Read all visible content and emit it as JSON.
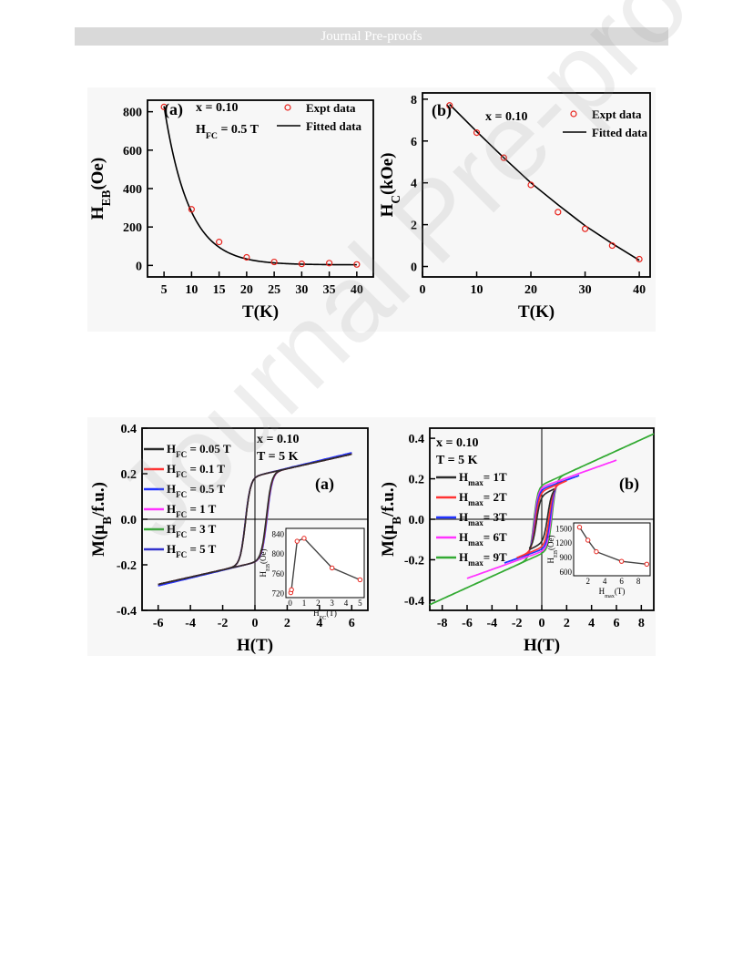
{
  "header": {
    "banner": "Journal Pre-proofs"
  },
  "watermark": "Journal Pre-proofs",
  "chart_data": [
    {
      "id": "top-a",
      "type": "scatter",
      "panel_label": "(a)",
      "annotations": [
        "x = 0.10",
        "H_FC = 0.5 T"
      ],
      "xlabel": "T(K)",
      "ylabel": "H_EB(Oe)",
      "xlim": [
        2,
        43
      ],
      "ylim": [
        -60,
        860
      ],
      "xticks": [
        5,
        10,
        15,
        20,
        25,
        30,
        35,
        40
      ],
      "yticks": [
        0,
        200,
        400,
        600,
        800
      ],
      "legend": [
        "Expt data",
        "Fitted data"
      ],
      "legend_position": "top-right",
      "series": [
        {
          "name": "Expt data",
          "x": [
            5,
            10,
            15,
            20,
            25,
            30,
            35,
            40
          ],
          "y": [
            825,
            292,
            122,
            42,
            18,
            8,
            12,
            5
          ]
        },
        {
          "name": "Fitted data",
          "fit": "exp",
          "y0": 3,
          "A": 2480,
          "tau": 4.55
        }
      ]
    },
    {
      "id": "top-b",
      "type": "scatter",
      "panel_label": "(b)",
      "annotations": [
        "x = 0.10"
      ],
      "xlabel": "T(K)",
      "ylabel": "H_C(kOe)",
      "xlim": [
        0,
        42
      ],
      "ylim": [
        -0.5,
        8.3
      ],
      "xticks": [
        0,
        10,
        20,
        30,
        40
      ],
      "yticks": [
        0,
        2,
        4,
        6,
        8
      ],
      "legend": [
        "Expt data",
        "Fitted data"
      ],
      "legend_position": "top-right",
      "series": [
        {
          "name": "Expt data",
          "x": [
            5,
            10,
            15,
            20,
            25,
            30,
            35,
            40
          ],
          "y": [
            7.7,
            6.4,
            5.2,
            3.9,
            2.6,
            1.8,
            1.0,
            0.35
          ]
        },
        {
          "name": "Fitted data",
          "fit": "poly",
          "y": [
            7.75,
            6.45,
            5.2,
            4.0,
            2.95,
            1.95,
            1.1,
            0.3
          ]
        }
      ]
    },
    {
      "id": "bottom-a",
      "type": "line",
      "panel_label": "(a)",
      "annotations": [
        "x = 0.10",
        "T = 5 K"
      ],
      "xlabel": "H(T)",
      "ylabel": "M(μ_B/f.u.)",
      "xlim": [
        -7,
        7
      ],
      "ylim": [
        -0.4,
        0.4
      ],
      "xticks": [
        -6,
        -4,
        -2,
        0,
        2,
        4,
        6
      ],
      "yticks": [
        -0.4,
        -0.2,
        0.0,
        0.2,
        0.4
      ],
      "legend_position": "top-left",
      "series": [
        {
          "name": "H_FC = 0.05 T",
          "color": "#2b2b2b",
          "hmax": 6,
          "hc": 0.65,
          "ms": 0.19,
          "chi": 0.016,
          "shift": -0.06
        },
        {
          "name": "H_FC = 0.1 T",
          "color": "#ff3333",
          "hmax": 6,
          "hc": 0.66,
          "ms": 0.19,
          "chi": 0.016,
          "shift": -0.07
        },
        {
          "name": "H_FC = 0.5 T",
          "color": "#2233ff",
          "hmax": 6,
          "hc": 0.68,
          "ms": 0.19,
          "chi": 0.017,
          "shift": -0.08
        },
        {
          "name": "H_FC = 1 T",
          "color": "#ff33ff",
          "hmax": 6,
          "hc": 0.67,
          "ms": 0.19,
          "chi": 0.016,
          "shift": -0.075
        },
        {
          "name": "H_FC = 3 T",
          "color": "#33aa33",
          "hmax": 6,
          "hc": 0.66,
          "ms": 0.19,
          "chi": 0.016,
          "shift": -0.07
        },
        {
          "name": "H_FC = 5 T",
          "color": "#3333cc",
          "hmax": 6,
          "hc": 0.66,
          "ms": 0.19,
          "chi": 0.016,
          "shift": -0.072
        }
      ],
      "inset": {
        "xlabel": "H_FC(T)",
        "ylabel": "H_EB(Oe)",
        "xlim": [
          -0.3,
          5.3
        ],
        "ylim": [
          712,
          852
        ],
        "xticks": [
          0,
          1,
          2,
          3,
          4,
          5
        ],
        "yticks": [
          720,
          760,
          800,
          840
        ],
        "x": [
          0.05,
          0.1,
          0.5,
          1,
          3,
          5
        ],
        "y": [
          722,
          728,
          826,
          832,
          772,
          748
        ]
      }
    },
    {
      "id": "bottom-b",
      "type": "line",
      "panel_label": "(b)",
      "annotations": [
        "x = 0.10",
        "T = 5 K"
      ],
      "xlabel": "H(T)",
      "ylabel": "M(μ_B/f.u.)",
      "xlim": [
        -9,
        9
      ],
      "ylim": [
        -0.45,
        0.45
      ],
      "xticks": [
        -8,
        -6,
        -4,
        -2,
        0,
        2,
        4,
        6,
        8
      ],
      "yticks": [
        -0.4,
        -0.2,
        0.0,
        0.2,
        0.4
      ],
      "legend_position": "left",
      "series": [
        {
          "name": "H_max= 1T",
          "color": "#2b2b2b",
          "hmax": 1,
          "hc": 0.45,
          "ms": 0.12,
          "chi": 0.03,
          "shift": -0.02
        },
        {
          "name": "H_max= 2T",
          "color": "#ff3333",
          "hmax": 2,
          "hc": 0.55,
          "ms": 0.14,
          "chi": 0.025,
          "shift": -0.05
        },
        {
          "name": "H_max= 3T",
          "color": "#2233ff",
          "hmax": 3,
          "hc": 0.62,
          "ms": 0.15,
          "chi": 0.022,
          "shift": -0.07
        },
        {
          "name": "H_max= 6T",
          "color": "#ff33ff",
          "hmax": 6,
          "hc": 0.68,
          "ms": 0.16,
          "chi": 0.022,
          "shift": -0.08
        },
        {
          "name": "H_max= 9T",
          "color": "#33aa33",
          "hmax": 9,
          "hc": 0.75,
          "ms": 0.17,
          "chi": 0.028,
          "shift": -0.09
        }
      ],
      "inset": {
        "xlabel": "H_max(T)",
        "ylabel": "H_EB(Oe)",
        "xlim": [
          0.3,
          9.4
        ],
        "ylim": [
          520,
          1620
        ],
        "xticks": [
          2,
          4,
          6,
          8
        ],
        "yticks": [
          600,
          900,
          1200,
          1500
        ],
        "x": [
          1,
          2,
          3,
          6,
          9
        ],
        "y": [
          1530,
          1260,
          1020,
          820,
          760
        ]
      }
    }
  ]
}
